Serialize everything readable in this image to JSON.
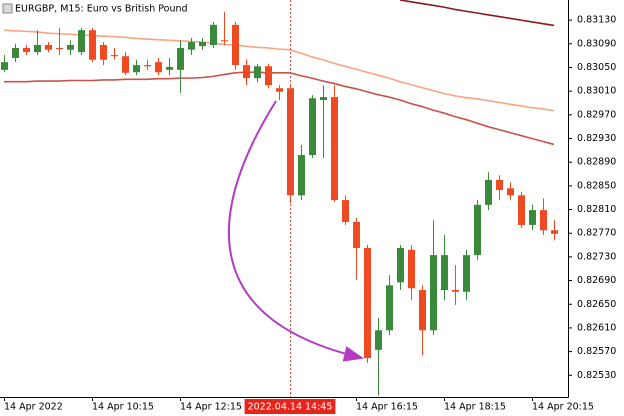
{
  "chart_data": {
    "type": "candlestick",
    "title": "EURGBP, M15:  Euro vs British Pound",
    "categories": [
      "14 Apr 2022",
      null,
      null,
      null,
      null,
      null,
      null,
      null,
      "14 Apr 10:15",
      null,
      null,
      null,
      null,
      null,
      null,
      null,
      "14 Apr 12:15",
      null,
      null,
      null,
      null,
      null,
      null,
      null,
      null,
      null,
      "2022.04.14 14:45",
      null,
      null,
      null,
      null,
      null,
      "14 Apr 16:15",
      null,
      null,
      null,
      null,
      null,
      null,
      null,
      "14 Apr 18:15",
      null,
      null,
      null,
      null,
      null,
      null,
      null,
      "14 Apr 20:15",
      null,
      null
    ],
    "crosshair_category": 26,
    "open": [
      0.83046,
      0.83066,
      0.83083,
      0.83076,
      0.83088,
      0.83083,
      0.8308,
      0.83076,
      0.83113,
      0.83088,
      0.83071,
      0.83069,
      0.83042,
      0.83054,
      0.83059,
      0.83046,
      0.83046,
      0.8308,
      0.83086,
      0.83088,
      0.83096,
      0.83122,
      0.83054,
      0.83032,
      0.83052,
      0.83015,
      0.83015,
      0.82834,
      0.82902,
      0.82995,
      0.83,
      0.82826,
      0.82789,
      0.82745,
      0.82573,
      0.82606,
      0.82687,
      0.82742,
      0.82674,
      0.82606,
      0.82674,
      0.82674,
      0.82671,
      0.82733,
      0.82818,
      0.8286,
      0.82846,
      0.82834,
      0.82784,
      0.82809,
      0.82775
    ],
    "high": [
      0.83071,
      0.8309,
      0.83088,
      0.83113,
      0.83093,
      0.83117,
      0.83096,
      0.83117,
      0.83117,
      0.83093,
      0.83083,
      0.83076,
      0.83063,
      0.83063,
      0.83066,
      0.83066,
      0.83096,
      0.831,
      0.831,
      0.83127,
      0.83144,
      0.83127,
      0.83063,
      0.83056,
      0.83056,
      0.8302,
      0.8302,
      0.82919,
      0.83003,
      0.8302,
      0.8302,
      0.82834,
      0.82796,
      0.8275,
      0.82627,
      0.82699,
      0.8275,
      0.8275,
      0.82682,
      0.82792,
      0.82767,
      0.82716,
      0.82742,
      0.82826,
      0.82873,
      0.82868,
      0.82856,
      0.8284,
      0.82818,
      0.82829,
      0.82792
    ],
    "low": [
      0.83042,
      0.83059,
      0.83071,
      0.83071,
      0.83076,
      0.83071,
      0.83071,
      0.83071,
      0.83059,
      0.83054,
      0.83063,
      0.83037,
      0.83037,
      0.83046,
      0.83037,
      0.83037,
      0.83007,
      0.83071,
      0.8308,
      0.83083,
      0.83088,
      0.83046,
      0.8302,
      0.83025,
      0.83015,
      0.82995,
      0.82821,
      0.82826,
      0.82897,
      0.82897,
      0.82823,
      0.82784,
      0.82691,
      0.82551,
      0.82496,
      0.82598,
      0.82674,
      0.82657,
      0.82564,
      0.82598,
      0.82657,
      0.82649,
      0.82657,
      0.82725,
      0.82809,
      0.82826,
      0.82826,
      0.82779,
      0.82775,
      0.82767,
      0.82758
    ],
    "close": [
      0.83059,
      0.83083,
      0.83076,
      0.83088,
      0.8308,
      0.83081,
      0.83088,
      0.83113,
      0.83063,
      0.83063,
      0.83069,
      0.83041,
      0.83054,
      0.83052,
      0.83042,
      0.83051,
      0.83083,
      0.83093,
      0.83093,
      0.83122,
      0.83095,
      0.83054,
      0.83032,
      0.83052,
      0.8302,
      0.83009,
      0.82834,
      0.82902,
      0.82998,
      0.83,
      0.82826,
      0.82789,
      0.82745,
      0.82559,
      0.82606,
      0.82682,
      0.82745,
      0.82677,
      0.82606,
      0.82733,
      0.82733,
      0.82671,
      0.82733,
      0.82818,
      0.8286,
      0.82843,
      0.82834,
      0.82784,
      0.82809,
      0.82775,
      0.82769
    ],
    "up_color": "#3b8a3b",
    "down_color": "#f04a22",
    "lines": [
      {
        "color": "#f7a582",
        "values": [
          0.83113,
          0.83112,
          0.83111,
          0.8311,
          0.83108,
          0.83107,
          0.83106,
          0.83105,
          0.83104,
          0.83103,
          0.83102,
          0.83101,
          0.83099,
          0.83098,
          0.83097,
          0.83096,
          0.83095,
          0.83094,
          0.83093,
          0.83091,
          0.83089,
          0.83088,
          0.83086,
          0.83084,
          0.83083,
          0.83081,
          0.8308,
          0.83074,
          0.83068,
          0.83063,
          0.83057,
          0.83052,
          0.83047,
          0.83042,
          0.83037,
          0.83032,
          0.83026,
          0.83021,
          0.83016,
          0.83011,
          0.83006,
          0.83002,
          0.82999,
          0.82997,
          0.82994,
          0.82991,
          0.82988,
          0.82985,
          0.82982,
          0.8298,
          0.82977
        ]
      },
      {
        "color": "#c9524c",
        "values": [
          0.83026,
          0.83026,
          0.83026,
          0.83027,
          0.83027,
          0.83027,
          0.83028,
          0.83028,
          0.83028,
          0.83029,
          0.83029,
          0.8303,
          0.8303,
          0.8303,
          0.83031,
          0.83031,
          0.83032,
          0.83032,
          0.83033,
          0.83035,
          0.83038,
          0.83041,
          0.83042,
          0.83042,
          0.83041,
          0.83041,
          0.83041,
          0.83036,
          0.83032,
          0.83027,
          0.83023,
          0.83018,
          0.83014,
          0.83009,
          0.83004,
          0.83,
          0.82995,
          0.82989,
          0.82984,
          0.82978,
          0.82973,
          0.82967,
          0.82962,
          0.82956,
          0.8295,
          0.82945,
          0.8294,
          0.82935,
          0.8293,
          0.82925,
          0.8292
        ]
      },
      {
        "color": "#8b1a1a",
        "values": [
          null,
          null,
          null,
          null,
          null,
          null,
          null,
          null,
          null,
          null,
          null,
          null,
          null,
          null,
          null,
          null,
          null,
          null,
          null,
          null,
          null,
          null,
          null,
          null,
          null,
          null,
          null,
          null,
          null,
          null,
          null,
          null,
          null,
          null,
          null,
          null,
          0.83164,
          0.83161,
          0.83158,
          0.83155,
          0.83152,
          0.83148,
          0.83145,
          0.83142,
          0.83139,
          0.83136,
          0.83133,
          0.8313,
          0.83127,
          0.83124,
          0.83121
        ]
      }
    ],
    "ylim": [
      0.82495,
      0.83164
    ],
    "yticks": [
      {
        "value": 0.8253,
        "label": "0.82530"
      },
      {
        "value": 0.8257,
        "label": "0.82570"
      },
      {
        "value": 0.8261,
        "label": "0.82610"
      },
      {
        "value": 0.8265,
        "label": "0.82650"
      },
      {
        "value": 0.8269,
        "label": "0.82690"
      },
      {
        "value": 0.8273,
        "label": "0.82730"
      },
      {
        "value": 0.8277,
        "label": "0.82770"
      },
      {
        "value": 0.8281,
        "label": "0.82810"
      },
      {
        "value": 0.8285,
        "label": "0.82850"
      },
      {
        "value": 0.8289,
        "label": "0.82890"
      },
      {
        "value": 0.8293,
        "label": "0.82930"
      },
      {
        "value": 0.8297,
        "label": "0.82970"
      },
      {
        "value": 0.8301,
        "label": "0.83010"
      },
      {
        "value": 0.8305,
        "label": "0.83050"
      },
      {
        "value": 0.8309,
        "label": "0.83090"
      },
      {
        "value": 0.8313,
        "label": "0.83130"
      }
    ],
    "grid": false
  }
}
